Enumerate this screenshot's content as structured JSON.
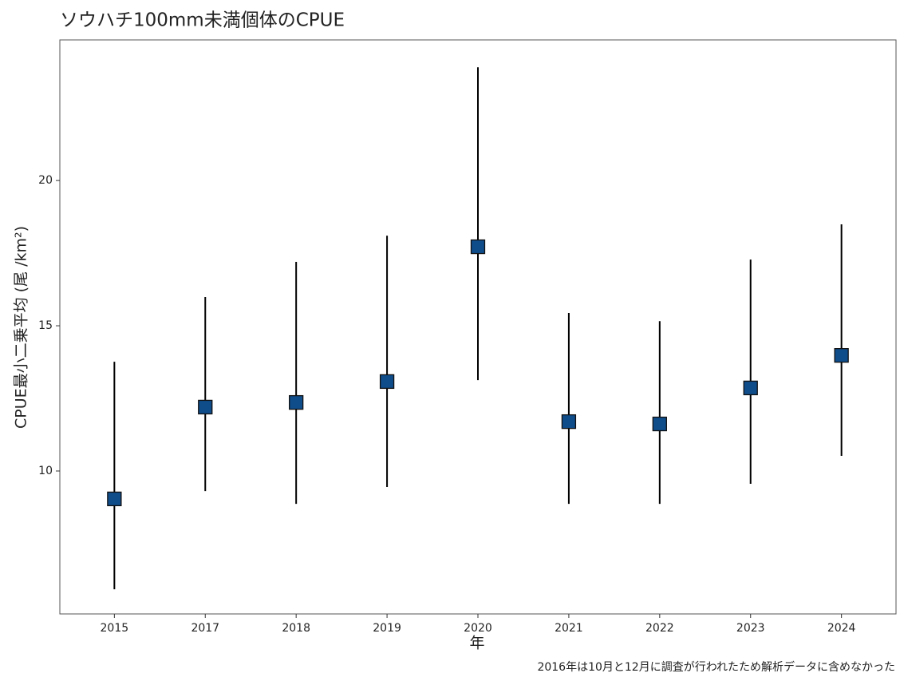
{
  "chart_data": {
    "type": "errorbar",
    "title": "ソウハチ100mm未満個体のCPUE",
    "x_label": "年",
    "y_label": "CPUE最小二乗平均 (尾 /km²)",
    "caption": "2016年は10月と12月に調査が行われたため解析データに含めなかった",
    "categories": [
      "2015",
      "2017",
      "2018",
      "2019",
      "2020",
      "2021",
      "2022",
      "2023",
      "2024"
    ],
    "values": [
      9.04,
      12.2,
      12.36,
      13.08,
      17.72,
      11.7,
      11.62,
      12.86,
      13.98
    ],
    "lower": [
      5.93,
      9.31,
      8.87,
      9.45,
      13.13,
      8.87,
      8.87,
      9.56,
      10.52
    ],
    "upper": [
      13.76,
      15.99,
      17.2,
      18.1,
      23.9,
      15.44,
      15.16,
      17.28,
      18.49
    ],
    "color": "#0f4c8a",
    "ylim": [
      5.08,
      24.84
    ],
    "yticks": [
      10,
      15,
      20
    ],
    "grid": false
  }
}
